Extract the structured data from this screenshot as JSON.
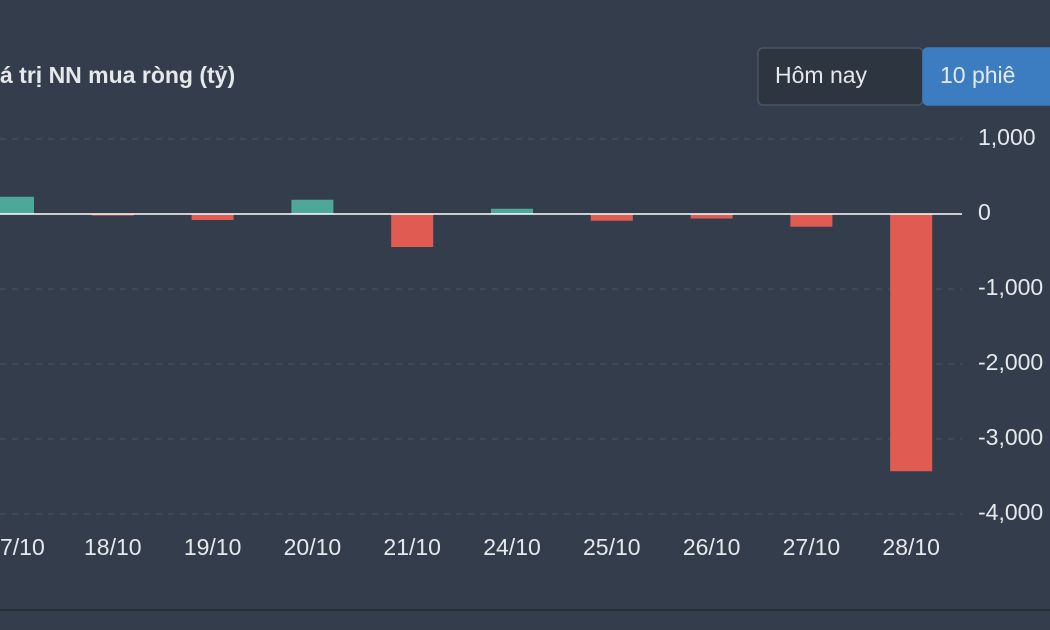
{
  "chart_data": {
    "type": "bar",
    "title": "á trị NN mua ròng (tỷ)",
    "buttons": [
      "Hôm nay",
      "10 phiê"
    ],
    "active_button": 1,
    "categories": [
      "7/10",
      "18/10",
      "19/10",
      "20/10",
      "21/10",
      "24/10",
      "25/10",
      "26/10",
      "27/10",
      "28/10"
    ],
    "values": [
      230,
      -20,
      -80,
      190,
      -440,
      70,
      -90,
      -60,
      -170,
      -3430
    ],
    "positive_color": "#4ea898",
    "negative_color": "#e05c53",
    "ylim": [
      -4000,
      1000
    ],
    "yticks": [
      {
        "value": 1000,
        "label": "1,000"
      },
      0,
      {
        "value": -1000,
        "label": "-1,000"
      },
      {
        "value": -2000,
        "label": "-2,000"
      },
      {
        "value": -3000,
        "label": "-3,000"
      },
      {
        "value": -4000,
        "label": "-4,000"
      }
    ],
    "grid": true
  }
}
